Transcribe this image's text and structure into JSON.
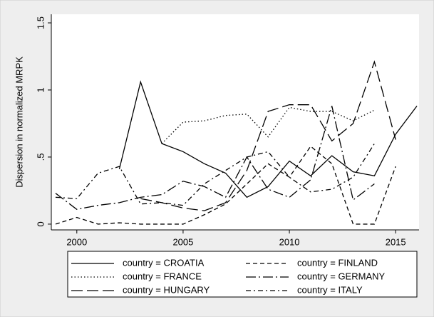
{
  "chart_data": {
    "type": "line",
    "y_label": "Dispersion in normalized MRPK",
    "x": [
      1999,
      2000,
      2001,
      2002,
      2003,
      2004,
      2005,
      2006,
      2007,
      2008,
      2009,
      2010,
      2011,
      2012,
      2013,
      2014,
      2015,
      2016
    ],
    "series": [
      {
        "name": "country = CROATIA",
        "color": "#000000",
        "dash": "solid",
        "values": [
          null,
          null,
          null,
          0.41,
          1.06,
          0.6,
          0.54,
          0.45,
          0.38,
          0.2,
          0.28,
          0.47,
          0.36,
          0.51,
          0.39,
          0.36,
          0.67,
          0.88
        ]
      },
      {
        "name": "country = FINLAND",
        "color": "#000000",
        "dash": "dash",
        "values": [
          0.0,
          0.05,
          0.0,
          0.01,
          0.0,
          0.0,
          0.0,
          0.07,
          0.15,
          0.3,
          0.45,
          0.35,
          0.58,
          0.45,
          0.0,
          0.0,
          0.43,
          null
        ]
      },
      {
        "name": "country = FRANCE",
        "color": "#000000",
        "dash": "dot",
        "values": [
          null,
          null,
          null,
          null,
          null,
          0.6,
          0.76,
          0.77,
          0.81,
          0.82,
          0.65,
          0.87,
          0.84,
          0.84,
          0.77,
          0.85,
          null,
          null
        ]
      },
      {
        "name": "country = GERMANY",
        "color": "#000000",
        "dash": "longdash_dot",
        "values": [
          0.23,
          0.11,
          0.14,
          0.16,
          0.2,
          0.22,
          0.32,
          0.28,
          0.2,
          0.5,
          0.26,
          0.2,
          0.33,
          0.88,
          0.18,
          0.3,
          null,
          null
        ]
      },
      {
        "name": "country = HUNGARY",
        "color": "#000000",
        "dash": "longdash",
        "values": [
          null,
          null,
          null,
          null,
          0.19,
          0.16,
          0.12,
          0.1,
          0.16,
          0.4,
          0.84,
          0.89,
          0.89,
          0.62,
          0.75,
          1.21,
          0.63,
          null
        ]
      },
      {
        "name": "country = ITALY",
        "color": "#000000",
        "dash": "dash_dot",
        "values": [
          0.2,
          0.19,
          0.38,
          0.43,
          0.15,
          0.16,
          0.14,
          0.3,
          0.4,
          0.5,
          0.54,
          0.35,
          0.24,
          0.26,
          0.35,
          0.6,
          null,
          null
        ]
      }
    ],
    "xlim": [
      1998.8,
      2016.1
    ],
    "ylim": [
      -0.043,
      1.564
    ],
    "xticks": [
      2000,
      2005,
      2010,
      2015
    ],
    "yticks": [
      0,
      {
        "value": 0.5,
        "label": ".5"
      },
      1,
      {
        "value": 1.5,
        "label": "1.5"
      }
    ],
    "legend": "bottom"
  }
}
